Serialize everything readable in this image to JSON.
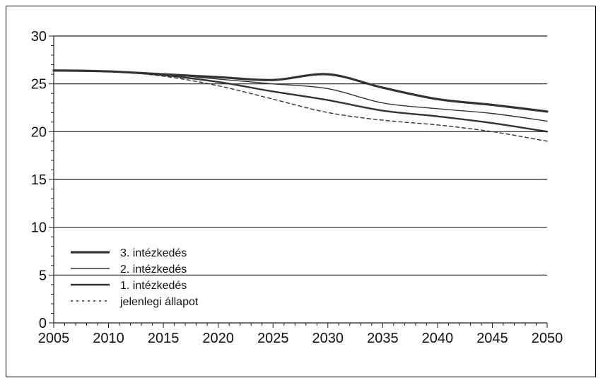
{
  "chart_data": {
    "type": "line",
    "title": "",
    "xlabel": "",
    "ylabel": "",
    "xlim": [
      2005,
      2050
    ],
    "ylim": [
      0,
      30
    ],
    "x_ticks": [
      2005,
      2010,
      2015,
      2020,
      2025,
      2030,
      2035,
      2040,
      2045,
      2050
    ],
    "y_ticks": [
      0,
      5,
      10,
      15,
      20,
      25,
      30
    ],
    "x_tick_labels": [
      "2005",
      "2010",
      "2015",
      "2020",
      "2025",
      "2030",
      "2035",
      "2040",
      "2045",
      "2050"
    ],
    "y_tick_labels": [
      "0",
      "5",
      "10",
      "15",
      "20",
      "25",
      "30"
    ],
    "grid": "horizontal",
    "legend_position": "lower-left",
    "series": [
      {
        "name": "3. intézkedés",
        "style": "thick-solid",
        "color": "#333333",
        "x": [
          2005,
          2010,
          2015,
          2020,
          2025,
          2030,
          2035,
          2040,
          2045,
          2050
        ],
        "y": [
          26.4,
          26.3,
          26.0,
          25.7,
          25.4,
          26.0,
          24.6,
          23.4,
          22.8,
          22.1
        ]
      },
      {
        "name": "2. intézkedés",
        "style": "thin-solid",
        "color": "#333333",
        "x": [
          2005,
          2010,
          2015,
          2020,
          2025,
          2030,
          2035,
          2040,
          2045,
          2050
        ],
        "y": [
          26.4,
          26.3,
          26.0,
          25.5,
          25.0,
          24.5,
          23.0,
          22.4,
          21.9,
          21.1
        ]
      },
      {
        "name": "1. intézkedés",
        "style": "medium-solid",
        "color": "#333333",
        "x": [
          2005,
          2010,
          2015,
          2020,
          2025,
          2030,
          2035,
          2040,
          2045,
          2050
        ],
        "y": [
          26.4,
          26.3,
          25.9,
          25.2,
          24.2,
          23.3,
          22.2,
          21.6,
          20.9,
          20.0
        ]
      },
      {
        "name": "jelenlegi állapot",
        "style": "dashed",
        "color": "#333333",
        "x": [
          2005,
          2010,
          2015,
          2020,
          2025,
          2030,
          2035,
          2040,
          2045,
          2050
        ],
        "y": [
          26.4,
          26.3,
          25.8,
          24.8,
          23.4,
          22.0,
          21.2,
          20.7,
          20.0,
          19.0
        ]
      }
    ]
  }
}
